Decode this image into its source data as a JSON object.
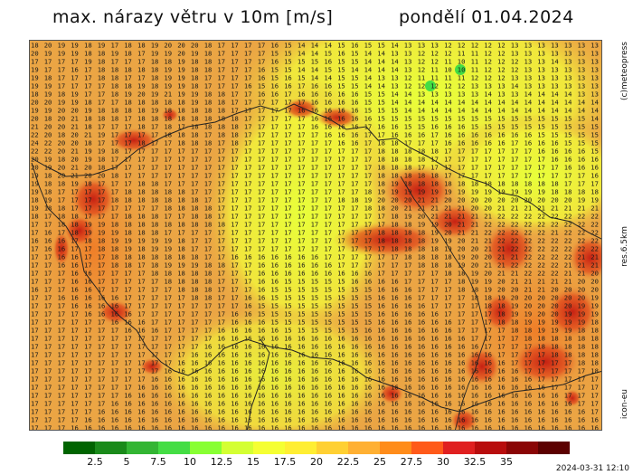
{
  "title": {
    "left": "max. nárazy větru v 10m [m/s]",
    "right": "pondělí 01.04.2024"
  },
  "side_labels": {
    "copyright": "(c)meteopress",
    "resolution": "res.6.5km",
    "model": "icon-eu"
  },
  "timestamp": "2024-03-31 12:10",
  "legend": {
    "colors": [
      "#006400",
      "#1a8a1a",
      "#33b533",
      "#44dd44",
      "#88ff33",
      "#d4ff33",
      "#f5ff33",
      "#ffee33",
      "#ffd033",
      "#ffb033",
      "#ff8c1a",
      "#ff5a1a",
      "#e02020",
      "#b80d0d",
      "#8a0505",
      "#5c0000"
    ],
    "labels": [
      "2.5",
      "5",
      "7.5",
      "10",
      "12.5",
      "15",
      "17.5",
      "20",
      "22.5",
      "25",
      "27.5",
      "30",
      "32.5",
      "35"
    ]
  },
  "map": {
    "base_color": "#eba544",
    "grid_rows": [
      "18 20 19 19 18 19 17 18 18 19 20 20 20 18 17 17 17 17 16 15 14 14 14 15 16 15 15 14 13 13 13 12 12 12 12 12 13 13 13 13 13 13 13",
      "20 19 19 19 18 18 19 18 17 19 19 20 19 18 17 17 17 17 15 15 14 14 15 16 15 14 14 13 13 12 12 12 11 11 12 12 13 13 13 13 13 13 13",
      "17 17 17 17 19 18 17 17 17 18 18 19 18 18 17 17 17 17 16 15 15 15 16 15 15 14 14 14 13 12 12 11 10 11 12 12 12 13 13 14 13 13 13",
      "19 17 17 16 17 18 18 18 18 18 19 19 18 18 17 17 17 16 15 15 14 14 15 15 14 14 14 14 13 12 11 10 10 11 12 12 12 13 13 13 13 13 13",
      "19 18 17 17 17 18 18 17 17 18 19 19 18 17 17 17 17 16 15 16 15 14 14 15 15 14 13 13 12 11 11 11 11 12 12 12 13 13 13 13 13 13 13",
      "19 19 17 17 17 17 18 18 19 18 19 19 18 17 17 17 16 15 16 16 17 16 16 15 15 14 14 13 12 12 12 12 12 13 13 13 14 13 13 13 13 13 13",
      "18 19 18 19 17 17 18 19 20 19 21 19 19 18 18 17 17 16 16 17 16 16 16 16 16 15 15 14 14 13 13 13 13 13 14 13 13 14 14 14 14 13 13",
      "20 20 19 19 18 17 17 18 18 18 18 18 19 18 18 17 17 17 17 17 17 16 16 16 16 15 15 14 14 14 14 14 14 14 14 14 14 14 14 14 14 14 14",
      "19 19 20 20 19 18 18 18 18 19 18 18 18 18 18 17 17 17 17 17 16 16 16 16 16 15 15 15 14 14 14 14 14 14 14 14 14 14 14 14 14 14 14",
      "20 18 20 21 18 18 18 17 18 18 18 18 18 18 18 18 17 17 17 17 17 16 16 16 16 16 15 15 15 15 15 15 15 15 15 15 15 15 15 15 15 15 14",
      "21 20 20 21 18 17 17 17 18 17 18 17 18 18 18 18 17 17 17 17 17 16 16 16 16 17 16 16 15 15 16 16 16 15 15 15 15 15 15 15 15 15 15",
      "22 20 18 20 21 19 17 17 17 17 18 18 18 17 18 18 17 17 17 17 17 17 16 16 16 17 17 16 16 16 17 16 16 16 16 16 16 16 15 15 15 15 15",
      "24 22 20 20 18 17 17 17 18 17 17 18 18 18 17 18 17 17 17 17 17 17 17 16 16 17 18 18 17 17 17 16 16 16 16 16 17 16 16 16 15 15 15",
      "22 22 20 21 19 19 18 17 17 17 17 17 17 17 17 17 17 17 17 17 17 17 17 17 17 17 18 18 18 18 18 17 17 17 17 17 17 17 16 16 16 16 15",
      "20 19 18 20 19 18 17 17 17 17 17 17 17 17 17 17 17 17 17 17 17 17 17 17 17 17 18 18 18 18 17 17 17 17 17 17 17 17 17 16 16 16 16",
      "20 19 20 21 20 18 17 17 17 17 17 17 17 17 17 17 17 17 17 17 17 17 17 17 17 17 18 18 18 17 17 17 17 17 17 17 17 17 17 17 16 16 16",
      "19 18 20 21 20 20 18 17 17 17 17 17 17 17 17 17 17 17 17 17 17 17 17 17 17 17 18 18 18 18 18 17 17 17 17 17 17 17 17 17 17 17 16",
      "19 18 18 19 18 17 17 17 18 18 17 17 17 17 17 17 17 17 17 17 17 17 17 17 17 17 18 19 18 18 18 18 18 18 18 18 18 18 18 18 17 17 17",
      "19 18 17 17 17 17 17 18 18 18 18 18 17 17 17 17 17 17 17 17 17 17 17 17 17 18 19 19 19 19 19 19 19 19 19 19 19 19 19 18 18 18 18",
      "18 19 17 17 17 17 18 18 18 18 18 18 18 17 17 17 17 17 17 17 17 17 17 18 18 19 20 20 20 21 21 20 20 20 20 20 20 20 20 20 20 19 19",
      "19 18 18 17 17 17 17 17 17 17 18 18 18 18 17 17 17 17 17 17 17 17 17 17 17 18 18 20 21 21 21 21 21 20 20 21 21 21 21 21 21 21 21",
      "18 17 18 18 17 17 17 18 18 18 17 17 18 18 17 17 17 17 17 17 17 17 17 17 17 17 17 18 19 20 21 21 21 21 21 22 22 22 22 22 22 22 22",
      "17 17 18 18 19 19 18 18 18 18 18 18 18 18 18 17 17 17 17 17 17 17 17 17 17 17 17 18 18 19 19 20 21 21 22 22 22 22 22 22 22 22 22",
      "17 16 17 18 19 19 19 18 18 18 17 17 17 17 17 17 17 17 17 17 17 17 17 17 17 17 18 18 18 18 19 20 21 21 22 22 22 22 22 21 22 22 22",
      "16 16 16 17 18 18 19 19 19 19 19 18 17 17 17 17 17 17 17 17 17 17 17 17 17 17 18 18 18 18 19 19 20 21 21 22 22 22 22 22 22 22 22",
      "17 16 16 17 17 18 18 19 18 19 19 18 17 17 17 17 17 17 17 17 17 17 17 17 17 17 17 18 18 18 18 19 20 20 21 21 22 22 22 22 22 22 22",
      "17 17 16 16 17 17 18 18 18 18 18 18 18 17 17 16 16 16 16 16 16 16 17 17 17 17 17 17 18 18 18 18 19 20 20 21 21 22 22 22 22 21 21",
      "17 17 16 16 17 17 18 18 17 18 19 19 19 18 18 17 17 16 16 16 16 16 16 17 17 17 17 17 17 18 18 18 19 20 21 21 22 22 22 22 21 21 21",
      "17 17 17 16 16 17 17 17 17 18 18 18 18 18 17 17 17 16 16 16 16 16 16 16 16 16 17 17 17 17 17 18 18 19 20 21 21 22 22 22 21 21 20",
      "17 17 17 16 16 17 17 17 17 17 18 18 18 18 17 17 17 16 16 15 15 15 15 15 16 16 16 16 17 17 17 17 18 19 19 20 21 21 21 21 21 20 20",
      "16 17 17 16 16 17 17 17 17 17 17 18 18 18 17 17 17 16 15 15 15 15 15 15 15 15 16 16 16 17 17 17 18 18 19 20 20 21 21 20 20 20 20",
      "17 17 16 16 16 16 16 17 17 17 17 17 18 18 17 17 16 16 15 15 15 15 15 15 15 15 16 16 16 17 17 17 17 18 18 19 20 20 20 20 20 20 19",
      "17 17 17 16 16 16 16 17 17 17 17 17 17 17 17 17 16 15 15 15 15 15 15 15 15 15 16 16 16 16 17 17 17 17 18 18 19 20 20 20 20 19 19",
      "17 17 17 17 16 16 16 16 17 17 17 17 17 17 17 16 16 15 15 15 15 15 15 15 15 15 16 16 16 16 16 17 17 17 17 18 19 19 20 20 19 19 19",
      "17 17 17 17 17 17 16 16 16 17 17 17 17 17 17 16 16 16 15 15 15 15 15 15 15 15 16 16 16 16 16 16 17 17 17 18 18 19 19 19 19 19 18",
      "17 17 17 17 17 17 17 16 16 16 17 17 17 17 16 16 16 16 16 15 15 15 15 15 15 16 16 16 16 16 16 16 17 17 17 17 18 18 19 19 19 18 18",
      "17 17 17 17 17 17 17 17 17 17 17 17 17 17 16 16 16 16 16 16 16 16 16 16 16 16 16 16 16 16 16 16 16 17 17 17 17 18 18 18 18 18 18",
      "17 17 17 17 17 17 17 17 17 17 17 17 17 16 16 16 16 16 16 16 16 16 16 16 16 16 16 16 16 16 16 16 16 16 17 17 17 17 18 18 18 18 18",
      "17 17 17 17 17 17 17 17 17 17 17 17 16 16 16 16 16 16 16 16 16 16 16 16 16 16 16 16 16 16 16 16 16 16 16 17 17 17 17 18 18 18 18",
      "17 17 17 17 17 17 17 17 17 17 17 16 16 16 16 16 16 16 16 16 16 16 16 16 16 16 16 16 16 16 16 16 16 16 16 16 17 17 17 17 17 18 18",
      "17 17 17 17 17 17 17 17 17 17 16 16 16 16 16 16 16 16 16 16 16 16 16 16 16 16 16 16 16 16 16 16 16 16 16 16 16 17 17 17 17 17 18",
      "17 17 17 17 17 17 17 17 17 16 16 16 16 16 16 16 16 16 16 16 16 16 16 16 16 16 16 16 16 16 16 16 16 16 16 16 16 16 17 17 17 17 17",
      "17 17 17 17 17 17 17 17 16 16 16 16 16 16 16 16 16 16 16 16 16 16 16 16 16 16 16 16 16 16 16 16 16 16 16 16 16 16 16 17 17 17 17",
      "17 17 17 17 17 17 17 16 16 16 16 16 16 16 16 16 16 16 16 16 16 16 16 16 16 16 16 16 16 16 16 16 16 16 16 16 16 16 16 16 17 17 17",
      "17 17 17 17 17 17 16 16 16 16 16 16 16 16 16 16 16 16 16 16 16 16 16 16 16 16 16 16 16 16 16 16 16 16 16 16 16 16 16 16 16 17 17",
      "17 17 17 17 17 16 16 16 16 16 16 16 16 16 16 16 16 16 16 16 16 16 16 16 16 16 16 16 16 16 16 16 16 16 16 16 16 16 16 16 16 16 17",
      "17 17 17 17 16 16 16 16 16 16 16 16 16 16 16 16 16 16 16 16 16 16 16 16 16 16 16 16 16 16 16 16 16 16 16 16 16 16 16 16 16 16 16",
      "17 17 17 16 16 16 16 16 16 16 16 16 16 16 16 16 16 16 16 16 16 16 16 16 16 16 16 16 16 16 16 16 16 16 16 16 16 16 16 16 16 16 16"
    ]
  }
}
